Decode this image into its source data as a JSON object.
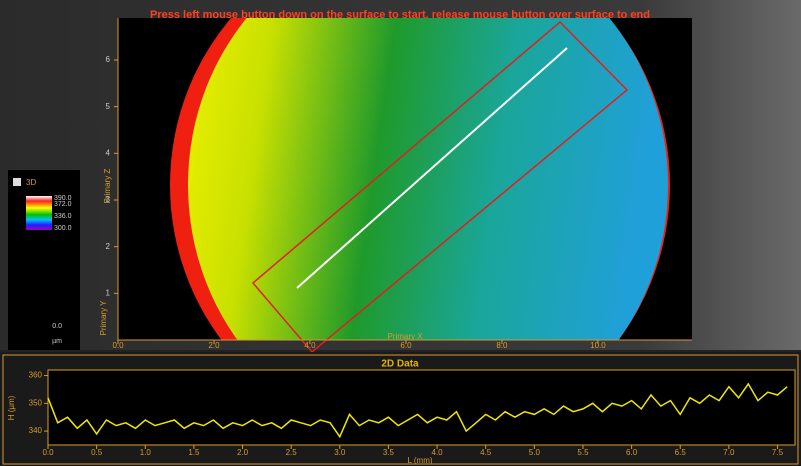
{
  "instruction": "Press left mouse button down on the surface to start, release mouse button over surface to end",
  "legend": {
    "checkbox_label": "3D",
    "bar_labels": [
      "390.0",
      "372.0",
      "336.0",
      "300.0"
    ],
    "min_label": "0.0",
    "unit": "µm"
  },
  "view_3d": {
    "x_label": "Primary X",
    "y_label": "Primary Y",
    "z_label": "Primary Z",
    "xlim": [
      0,
      11.96
    ],
    "ylim": [
      0,
      6.9
    ],
    "xticks": [
      {
        "value": 0,
        "label": "0.0"
      },
      {
        "value": 2,
        "label": "2.0"
      },
      {
        "value": 4,
        "label": "4.0"
      },
      {
        "value": 6,
        "label": "6.0"
      },
      {
        "value": 8,
        "label": "8.0"
      },
      {
        "value": 10,
        "label": "10.0"
      }
    ],
    "yticks": [
      1,
      2,
      3,
      4,
      5,
      6
    ]
  },
  "chart_data": {
    "type": "line",
    "title": "2D Data",
    "x_label": "L (mm)",
    "y_label": "H (µm)",
    "color": "#f2e600",
    "x": [
      0.0,
      0.1,
      0.2,
      0.3,
      0.4,
      0.5,
      0.6,
      0.7,
      0.8,
      0.9,
      1.0,
      1.1,
      1.2,
      1.3,
      1.4,
      1.5,
      1.6,
      1.7,
      1.8,
      1.9,
      2.0,
      2.1,
      2.2,
      2.3,
      2.4,
      2.5,
      2.6,
      2.7,
      2.8,
      2.9,
      3.0,
      3.1,
      3.2,
      3.3,
      3.4,
      3.5,
      3.6,
      3.7,
      3.8,
      3.9,
      4.0,
      4.1,
      4.2,
      4.3,
      4.4,
      4.5,
      4.6,
      4.7,
      4.8,
      4.9,
      5.0,
      5.1,
      5.2,
      5.3,
      5.4,
      5.5,
      5.6,
      5.7,
      5.8,
      5.9,
      6.0,
      6.1,
      6.2,
      6.3,
      6.4,
      6.5,
      6.6,
      6.7,
      6.8,
      6.9,
      7.0,
      7.1,
      7.2,
      7.3,
      7.4,
      7.5,
      7.6
    ],
    "values": [
      352,
      343,
      345,
      341,
      344,
      339,
      344,
      342,
      343,
      341,
      344,
      342,
      343,
      344,
      341,
      343,
      342,
      344,
      341,
      343,
      342,
      344,
      342,
      343,
      341,
      344,
      343,
      342,
      344,
      343,
      338,
      346,
      342,
      344,
      343,
      345,
      342,
      344,
      346,
      343,
      345,
      344,
      347,
      340,
      343,
      346,
      344,
      347,
      345,
      347,
      346,
      348,
      346,
      349,
      347,
      348,
      350,
      347,
      350,
      349,
      351,
      348,
      353,
      349,
      351,
      346,
      352,
      350,
      353,
      351,
      356,
      352,
      357,
      351,
      354,
      353,
      356
    ],
    "xlim": [
      0,
      7.68
    ],
    "ylim": [
      335,
      362
    ],
    "xticks": [
      {
        "value": 0,
        "label": "0.0"
      },
      {
        "value": 0.5,
        "label": "0.5"
      },
      {
        "value": 1,
        "label": "1.0"
      },
      {
        "value": 1.5,
        "label": "1.5"
      },
      {
        "value": 2,
        "label": "2.0"
      },
      {
        "value": 2.5,
        "label": "2.5"
      },
      {
        "value": 3,
        "label": "3.0"
      },
      {
        "value": 3.5,
        "label": "3.5"
      },
      {
        "value": 4,
        "label": "4.0"
      },
      {
        "value": 4.5,
        "label": "4.5"
      },
      {
        "value": 5,
        "label": "5.0"
      },
      {
        "value": 5.5,
        "label": "5.5"
      },
      {
        "value": 6,
        "label": "6.0"
      },
      {
        "value": 6.5,
        "label": "6.5"
      },
      {
        "value": 7,
        "label": "7.0"
      },
      {
        "value": 7.5,
        "label": "7.5"
      }
    ],
    "yticks": [
      340,
      350,
      360
    ]
  }
}
